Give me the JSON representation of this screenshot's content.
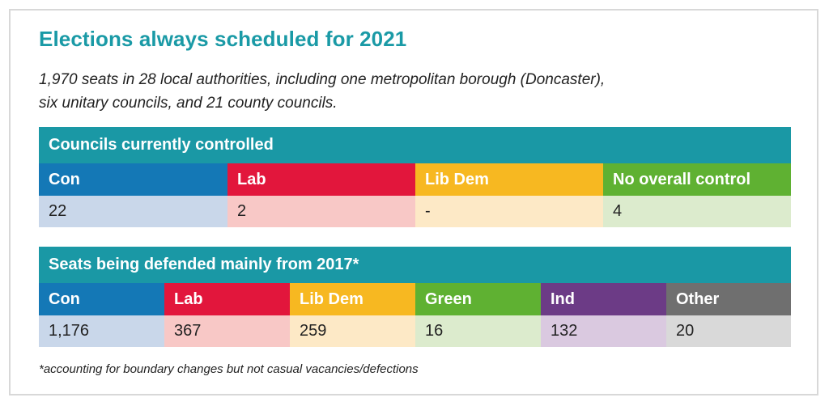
{
  "title": "Elections always scheduled for 2021",
  "subtitle": "1,970 seats in 28 local authorities, including one metropolitan borough (Doncaster), six unitary councils, and 21 county councils.",
  "councils": {
    "heading": "Councils currently controlled",
    "columns": [
      {
        "label": "Con",
        "value": "22",
        "color": "#1478b6",
        "tint": "#c9d7ea"
      },
      {
        "label": "Lab",
        "value": "2",
        "color": "#e2163c",
        "tint": "#f8c8c6"
      },
      {
        "label": "Lib Dem",
        "value": "-",
        "color": "#f7b821",
        "tint": "#fde9c6"
      },
      {
        "label": "No overall control",
        "value": "4",
        "color": "#5fb132",
        "tint": "#dcebcd"
      }
    ]
  },
  "seats": {
    "heading": "Seats being defended mainly from 2017*",
    "columns": [
      {
        "label": "Con",
        "value": "1,176",
        "color": "#1478b6",
        "tint": "#c9d7ea"
      },
      {
        "label": "Lab",
        "value": "367",
        "color": "#e2163c",
        "tint": "#f8c8c6"
      },
      {
        "label": "Lib Dem",
        "value": "259",
        "color": "#f7b821",
        "tint": "#fde9c6"
      },
      {
        "label": "Green",
        "value": "16",
        "color": "#5fb132",
        "tint": "#dcebcd"
      },
      {
        "label": "Ind",
        "value": "132",
        "color": "#6c3b86",
        "tint": "#dac9e0"
      },
      {
        "label": "Other",
        "value": "20",
        "color": "#6f6f6f",
        "tint": "#d9d9d9"
      }
    ]
  },
  "footnote": "*accounting for boundary changes but not casual vacancies/defections"
}
